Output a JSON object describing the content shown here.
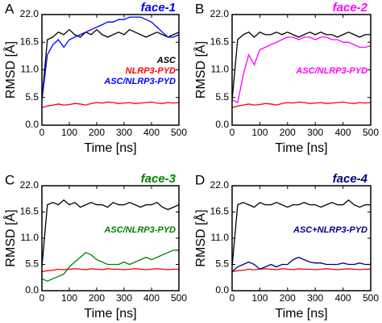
{
  "chart_data": [
    {
      "type": "line",
      "panel": "A",
      "title": "face-1",
      "xlabel": "Time [ns]",
      "ylabel": "RMSD [Å]",
      "x": [
        0,
        20,
        40,
        60,
        80,
        100,
        120,
        140,
        160,
        180,
        200,
        220,
        240,
        260,
        280,
        300,
        320,
        340,
        360,
        380,
        400,
        420,
        440,
        460,
        480,
        500
      ],
      "xlim": [
        0,
        500
      ],
      "xticks": [
        0,
        100,
        200,
        300,
        400,
        500
      ],
      "ylim": [
        0,
        22
      ],
      "yticks": [
        {
          "value": 0,
          "label": "0.0"
        },
        5.5,
        {
          "value": 11,
          "label": "11.0"
        },
        16.5,
        {
          "value": 22,
          "label": "22.0"
        }
      ],
      "series": [
        {
          "name": "ASC",
          "color": "#000000",
          "values": [
            5,
            17,
            17.5,
            18.5,
            18,
            19,
            18,
            17.5,
            18.5,
            18,
            19,
            18,
            17.5,
            18,
            18.5,
            18,
            19,
            18.5,
            18,
            17.5,
            18,
            18.5,
            18,
            17.5,
            18,
            18.5
          ]
        },
        {
          "name": "NLRP3-PYD",
          "color": "#ff0000",
          "values": [
            3.5,
            3.8,
            4,
            4.2,
            4,
            4.1,
            4.3,
            4.2,
            4,
            4.3,
            4.5,
            4.4,
            4.6,
            4.5,
            4.3,
            4.4,
            4.5,
            4.3,
            4.4,
            4.5,
            4.6,
            4.4,
            4.3,
            4.5,
            4.4,
            4.5
          ]
        },
        {
          "name": "ASC/NLRP3-PYD",
          "color": "#0000ff",
          "values": [
            5,
            14,
            16,
            17,
            15.5,
            17,
            17.5,
            18,
            18.5,
            19,
            19.5,
            20,
            20.5,
            20.5,
            21,
            21,
            21.5,
            21.5,
            21.5,
            21,
            20.5,
            19.5,
            18.5,
            17.5,
            17.5,
            18
          ]
        }
      ]
    },
    {
      "type": "line",
      "panel": "B",
      "title": "face-2",
      "xlabel": "Time [ns]",
      "ylabel": "RMSD [Å]",
      "x": [
        0,
        20,
        40,
        60,
        80,
        100,
        120,
        140,
        160,
        180,
        200,
        220,
        240,
        260,
        280,
        300,
        320,
        340,
        360,
        380,
        400,
        420,
        440,
        460,
        480,
        500
      ],
      "xlim": [
        0,
        500
      ],
      "xticks": [
        0,
        100,
        200,
        300,
        400,
        500
      ],
      "ylim": [
        0,
        22
      ],
      "yticks": [
        {
          "value": 0,
          "label": "0.0"
        },
        5.5,
        {
          "value": 11,
          "label": "11.0"
        },
        16.5,
        {
          "value": 22,
          "label": "22.0"
        }
      ],
      "series": [
        {
          "color": "#000000",
          "values": [
            5,
            17,
            18,
            18.5,
            17.5,
            18.5,
            18,
            18,
            18.5,
            18,
            18.5,
            18,
            17.5,
            18,
            18.5,
            18,
            18.5,
            18,
            18,
            17.5,
            18,
            18.5,
            18,
            17.5,
            18,
            18
          ]
        },
        {
          "color": "#ff0000",
          "values": [
            3.5,
            3.8,
            4,
            4.2,
            4,
            4.1,
            4.3,
            4.2,
            4,
            4.3,
            4.5,
            4.4,
            4.6,
            4.5,
            4.3,
            4.4,
            4.5,
            4.3,
            4.4,
            4.5,
            4.6,
            4.4,
            4.3,
            4.5,
            4.4,
            4.5
          ]
        },
        {
          "name": "ASC/NLRP3-PYD",
          "color": "#ff00ff",
          "values": [
            5,
            4.5,
            10,
            14,
            12,
            15,
            15.5,
            16,
            16.5,
            17,
            17.5,
            17.5,
            17,
            17.5,
            17.5,
            17,
            17.5,
            17.5,
            17,
            17,
            16.5,
            16.5,
            16,
            15.5,
            15.5,
            15.8
          ]
        }
      ]
    },
    {
      "type": "line",
      "panel": "C",
      "title": "face-3",
      "xlabel": "Time [ns]",
      "ylabel": "RMSD [Å]",
      "x": [
        0,
        20,
        40,
        60,
        80,
        100,
        120,
        140,
        160,
        180,
        200,
        220,
        240,
        260,
        280,
        300,
        320,
        340,
        360,
        380,
        400,
        420,
        440,
        460,
        480,
        500
      ],
      "xlim": [
        0,
        500
      ],
      "xticks": [
        0,
        100,
        200,
        300,
        400,
        500
      ],
      "ylim": [
        0,
        22
      ],
      "yticks": [
        {
          "value": 0,
          "label": "0.0"
        },
        5.5,
        {
          "value": 11,
          "label": "11.0"
        },
        16.5,
        {
          "value": 22,
          "label": "22.0"
        }
      ],
      "series": [
        {
          "color": "#000000",
          "values": [
            5,
            18,
            18.5,
            18,
            19,
            18,
            18.5,
            17.5,
            18,
            18.5,
            18,
            18,
            17.5,
            18.5,
            18,
            18,
            18.5,
            18,
            17.5,
            18,
            18,
            18.5,
            17.5,
            17,
            17.5,
            18
          ]
        },
        {
          "color": "#ff0000",
          "values": [
            4,
            4.2,
            4.3,
            4.5,
            4.4,
            4.5,
            4.6,
            4.5,
            4.4,
            4.6,
            4.5,
            4.4,
            4.6,
            4.5,
            4.5,
            4.4,
            4.5,
            4.6,
            4.5,
            4.4,
            4.5,
            4.6,
            4.5,
            4.4,
            4.5,
            4.5
          ]
        },
        {
          "name": "ASC/NLRP3-PYD",
          "color": "#008000",
          "values": [
            2.5,
            2,
            2.5,
            3,
            3.5,
            5,
            6,
            7,
            8,
            7.5,
            6.5,
            6,
            5.5,
            5.5,
            5.5,
            6,
            5.5,
            6,
            6.5,
            7,
            6.5,
            7,
            7.5,
            8,
            8.5,
            8.5
          ]
        }
      ]
    },
    {
      "type": "line",
      "panel": "D",
      "title": "face-4",
      "xlabel": "Time [ns]",
      "ylabel": "RMSD [Å]",
      "x": [
        0,
        20,
        40,
        60,
        80,
        100,
        120,
        140,
        160,
        180,
        200,
        220,
        240,
        260,
        280,
        300,
        320,
        340,
        360,
        380,
        400,
        420,
        440,
        460,
        480,
        500
      ],
      "xlim": [
        0,
        500
      ],
      "xticks": [
        0,
        100,
        200,
        300,
        400,
        500
      ],
      "ylim": [
        0,
        22
      ],
      "yticks": [
        {
          "value": 0,
          "label": "0.0"
        },
        5.5,
        {
          "value": 11,
          "label": "11.0"
        },
        16.5,
        {
          "value": 22,
          "label": "22.0"
        }
      ],
      "series": [
        {
          "color": "#000000",
          "values": [
            5,
            18,
            18.5,
            18,
            17.5,
            18.5,
            18,
            18,
            18.5,
            18,
            17.5,
            18,
            18,
            18.5,
            18,
            18,
            17.5,
            18,
            18.5,
            18,
            18,
            19,
            18,
            17.5,
            18,
            18
          ]
        },
        {
          "color": "#ff0000",
          "values": [
            4,
            4.2,
            4.3,
            4.5,
            4.4,
            4.5,
            4.6,
            4.5,
            4.4,
            4.6,
            4.5,
            4.4,
            4.6,
            4.5,
            4.5,
            4.4,
            4.5,
            4.6,
            4.5,
            4.4,
            4.5,
            4.6,
            4.5,
            4.4,
            4.5,
            4.5
          ]
        },
        {
          "name": "ASC+NLRP3-PYD",
          "color": "#000080",
          "values": [
            4,
            5,
            5.5,
            6,
            5.5,
            4.5,
            5,
            5.5,
            5,
            5.5,
            5.5,
            6.5,
            7,
            6.5,
            6,
            5.8,
            5.8,
            5.5,
            5.5,
            5.5,
            5.8,
            5.5,
            5.5,
            5.8,
            5.5,
            5.5
          ]
        }
      ]
    }
  ]
}
